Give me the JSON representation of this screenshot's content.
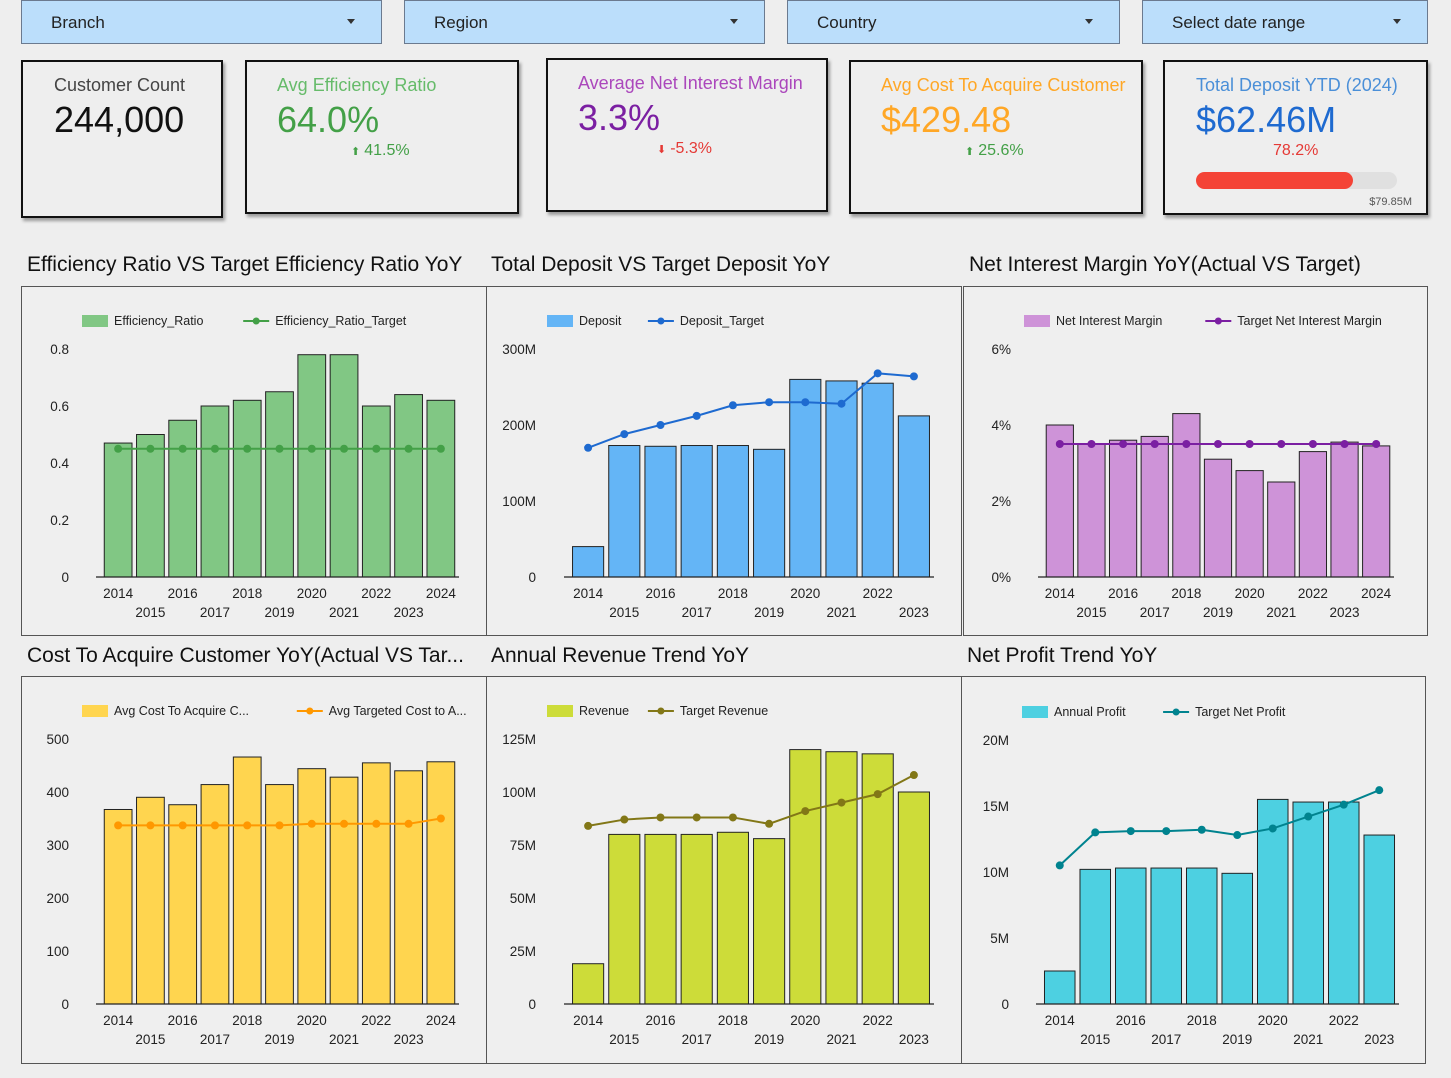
{
  "filters": [
    {
      "label": "Branch"
    },
    {
      "label": "Region"
    },
    {
      "label": "Country"
    },
    {
      "label": "Select date range"
    }
  ],
  "kpis": {
    "customer_count": {
      "title": "Customer Count",
      "value": "244,000",
      "color": "#222222"
    },
    "efficiency": {
      "title": "Avg Efficiency Ratio",
      "value": "64.0%",
      "delta": "41.5%",
      "delta_dir": "up",
      "color": "#43a047",
      "title_color": "#66bb6a"
    },
    "nim": {
      "title": "Average Net Interest Margin",
      "value": "3.3%",
      "delta": "-5.3%",
      "delta_dir": "down",
      "color": "#7b1fa2",
      "title_color": "#ab47bc"
    },
    "cac": {
      "title": "Avg Cost To Acquire Customer",
      "value": "$429.48",
      "delta": "25.6%",
      "delta_dir": "up",
      "color": "#ffa726",
      "title_color": "#ffa726"
    },
    "deposit": {
      "title": "Total Deposit YTD (2024)",
      "value": "$62.46M",
      "progress_label": "78.2%",
      "progress": 0.782,
      "target": "$79.85M",
      "color": "#1e6ad0",
      "title_color": "#4a8fd8"
    }
  },
  "chart_data": [
    {
      "id": "efficiency",
      "type": "bar",
      "title": "Efficiency Ratio VS Target Efficiency Ratio YoY",
      "categories": [
        "2014",
        "2015",
        "2016",
        "2017",
        "2018",
        "2019",
        "2020",
        "2021",
        "2022",
        "2023",
        "2024"
      ],
      "series": [
        {
          "name": "Efficiency_Ratio",
          "kind": "bar",
          "values": [
            0.47,
            0.5,
            0.55,
            0.6,
            0.62,
            0.65,
            0.78,
            0.78,
            0.6,
            0.64,
            0.62
          ]
        },
        {
          "name": "Efficiency_Ratio_Target",
          "kind": "line",
          "values": [
            0.45,
            0.45,
            0.45,
            0.45,
            0.45,
            0.45,
            0.45,
            0.45,
            0.45,
            0.45,
            0.45
          ]
        }
      ],
      "ylim": [
        0,
        0.8
      ],
      "yticks": [
        0,
        0.2,
        0.4,
        0.6,
        0.8
      ],
      "ytick_labels": [
        "0",
        "0.2",
        "0.4",
        "0.6",
        "0.8"
      ],
      "bar_color": "#81c784",
      "line_color": "#43a047"
    },
    {
      "id": "deposit",
      "type": "bar",
      "title": "Total Deposit VS Target Deposit YoY",
      "categories": [
        "2014",
        "2015",
        "2016",
        "2017",
        "2018",
        "2019",
        "2020",
        "2021",
        "2022",
        "2023"
      ],
      "series": [
        {
          "name": "Deposit",
          "kind": "bar",
          "values": [
            40,
            173,
            172,
            173,
            173,
            168,
            260,
            258,
            255,
            212
          ]
        },
        {
          "name": "Deposit_Target",
          "kind": "line",
          "values": [
            170,
            188,
            200,
            212,
            226,
            230,
            230,
            228,
            268,
            264
          ]
        }
      ],
      "ylim": [
        0,
        300
      ],
      "yticks": [
        0,
        100,
        200,
        300
      ],
      "ytick_labels": [
        "0",
        "100M",
        "200M",
        "300M"
      ],
      "bar_color": "#64b5f6",
      "line_color": "#1e6ad0"
    },
    {
      "id": "nim",
      "type": "bar",
      "title": "Net Interest Margin YoY(Actual VS Target)",
      "categories": [
        "2014",
        "2015",
        "2016",
        "2017",
        "2018",
        "2019",
        "2020",
        "2021",
        "2022",
        "2023",
        "2024"
      ],
      "series": [
        {
          "name": "Net Interest Margin",
          "kind": "bar",
          "values": [
            4.0,
            3.5,
            3.6,
            3.7,
            4.3,
            3.1,
            2.8,
            2.5,
            3.3,
            3.55,
            3.45
          ]
        },
        {
          "name": "Target Net Interest Margin",
          "kind": "line",
          "values": [
            3.5,
            3.5,
            3.5,
            3.5,
            3.5,
            3.5,
            3.5,
            3.5,
            3.5,
            3.5,
            3.5
          ]
        }
      ],
      "ylim": [
        0,
        6
      ],
      "yticks": [
        0,
        2,
        4,
        6
      ],
      "ytick_labels": [
        "0%",
        "2%",
        "4%",
        "6%"
      ],
      "bar_color": "#ce93d8",
      "line_color": "#7b1fa2"
    },
    {
      "id": "cac",
      "type": "bar",
      "title": "Cost To Acquire Customer YoY(Actual VS Tar...",
      "categories": [
        "2014",
        "2015",
        "2016",
        "2017",
        "2018",
        "2019",
        "2020",
        "2021",
        "2022",
        "2023",
        "2024"
      ],
      "series": [
        {
          "name": "Avg Cost To Acquire C...",
          "kind": "bar",
          "values": [
            367,
            390,
            376,
            414,
            466,
            414,
            444,
            428,
            455,
            440,
            457
          ]
        },
        {
          "name": "Avg Targeted Cost to A...",
          "kind": "line",
          "values": [
            337,
            337,
            337,
            337,
            337,
            337,
            340,
            340,
            340,
            340,
            350
          ]
        }
      ],
      "ylim": [
        0,
        500
      ],
      "yticks": [
        0,
        100,
        200,
        300,
        400,
        500
      ],
      "ytick_labels": [
        "0",
        "100",
        "200",
        "300",
        "400",
        "500"
      ],
      "bar_color": "#ffd54f",
      "line_color": "#ff9800"
    },
    {
      "id": "revenue",
      "type": "bar",
      "title": "Annual Revenue Trend YoY",
      "categories": [
        "2014",
        "2015",
        "2016",
        "2017",
        "2018",
        "2019",
        "2020",
        "2021",
        "2022",
        "2023"
      ],
      "series": [
        {
          "name": "Revenue",
          "kind": "bar",
          "values": [
            19,
            80,
            80,
            80,
            81,
            78,
            120,
            119,
            118,
            100
          ]
        },
        {
          "name": "Target Revenue",
          "kind": "line",
          "values": [
            84,
            87,
            88,
            88,
            88,
            85,
            91,
            95,
            99,
            108
          ]
        }
      ],
      "ylim": [
        0,
        125
      ],
      "yticks": [
        0,
        25,
        50,
        75,
        100,
        125
      ],
      "ytick_labels": [
        "0",
        "25M",
        "50M",
        "75M",
        "100M",
        "125M"
      ],
      "bar_color": "#cddc39",
      "line_color": "#827717"
    },
    {
      "id": "profit",
      "type": "bar",
      "title": "Net Profit Trend YoY",
      "categories": [
        "2014",
        "2015",
        "2016",
        "2017",
        "2018",
        "2019",
        "2020",
        "2021",
        "2022",
        "2023"
      ],
      "series": [
        {
          "name": "Annual Profit",
          "kind": "bar",
          "values": [
            2.5,
            10.2,
            10.3,
            10.3,
            10.3,
            9.9,
            15.5,
            15.3,
            15.3,
            12.8
          ]
        },
        {
          "name": "Target Net Profit",
          "kind": "line",
          "values": [
            10.5,
            13.0,
            13.1,
            13.1,
            13.2,
            12.8,
            13.3,
            14.2,
            15.1,
            16.2
          ]
        }
      ],
      "ylim": [
        0,
        20
      ],
      "yticks": [
        0,
        5,
        10,
        15,
        20
      ],
      "ytick_labels": [
        "0",
        "5M",
        "10M",
        "15M",
        "20M"
      ],
      "bar_color": "#4dd0e1",
      "line_color": "#00838f"
    }
  ]
}
